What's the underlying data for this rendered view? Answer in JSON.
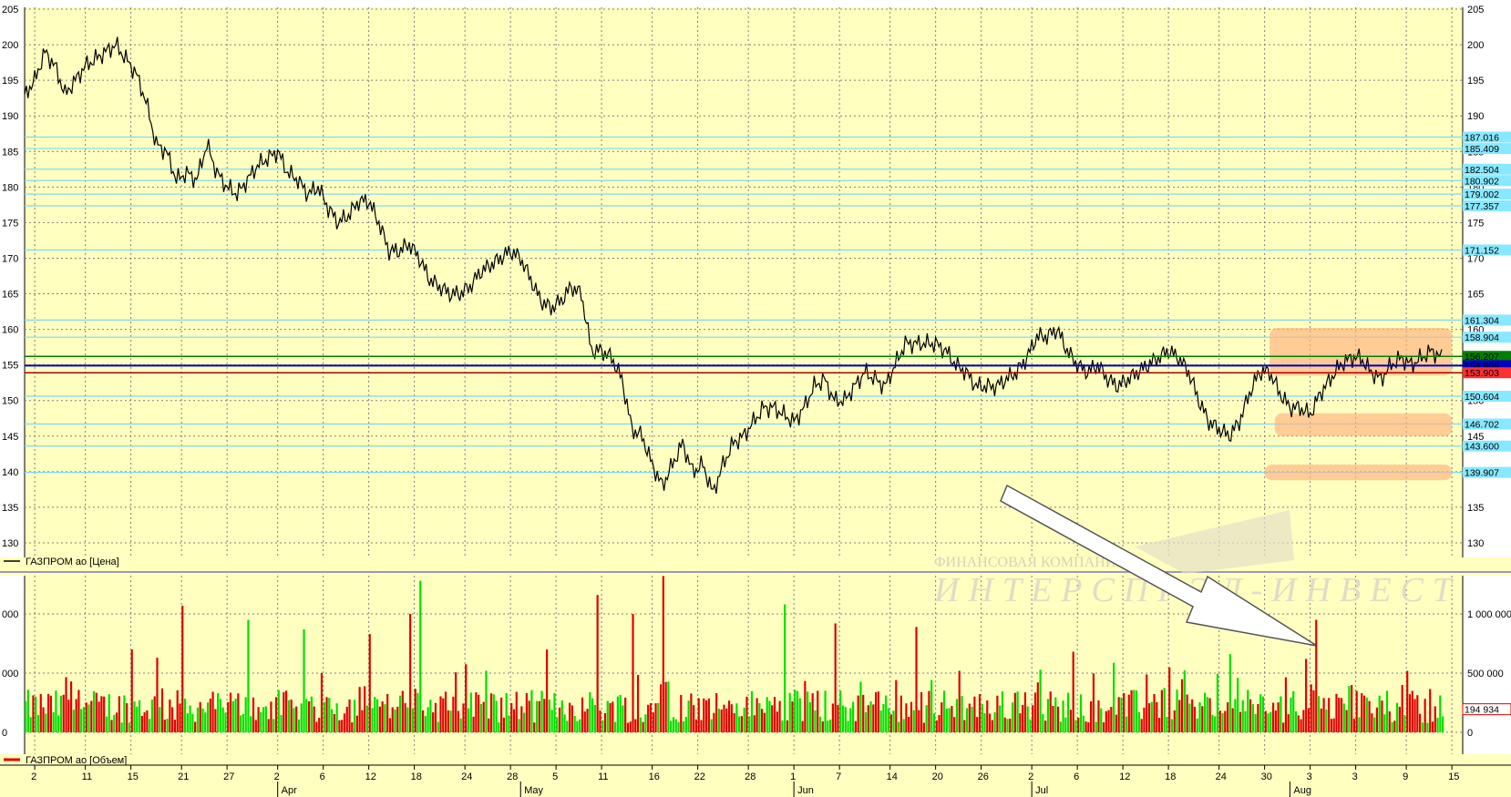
{
  "chart_data": {
    "type": "line",
    "colors": {
      "background": "#FFFFC0",
      "grid": "#808080",
      "price_line": "#000000",
      "level_line": "#80D8F0",
      "level_label_bg": "#88E8FF",
      "green_line": "#008000",
      "blue_line": "#0000C0",
      "red_line": "#B00000",
      "vol_up": "#00E000",
      "vol_down": "#E00000",
      "zone": "#FFB080",
      "arrow": "#FFFFFF"
    },
    "price": {
      "legend": "ГАЗПРОМ ао [Цена]",
      "ylim": [
        130,
        205
      ],
      "yticks": [
        "130",
        "135",
        "140",
        "145",
        "150",
        "155",
        "160",
        "165",
        "170",
        "175",
        "180",
        "185",
        "190",
        "195",
        "200",
        "205"
      ],
      "levels": [
        {
          "value": 187.016,
          "label": "187.0162",
          "shown": "187.016"
        },
        {
          "value": 185.409,
          "label": "185.409",
          "shown": "185.409"
        },
        {
          "value": 182.504,
          "label": "182.504",
          "shown": "182.504"
        },
        {
          "value": 180.902,
          "label": "180.902",
          "shown": "180.902"
        },
        {
          "value": 179.002,
          "label": "179.002",
          "shown": "179.002"
        },
        {
          "value": 177.357,
          "label": "177.357",
          "shown": "177.357"
        },
        {
          "value": 171.152,
          "label": "171.152",
          "shown": "171.152"
        },
        {
          "value": 161.304,
          "label": "161.304",
          "shown": "161.304"
        },
        {
          "value": 158.904,
          "label": "158.904",
          "shown": "158.904"
        },
        {
          "value": 150.604,
          "label": "150.604",
          "shown": "150.604"
        },
        {
          "value": 146.702,
          "label": "146.702",
          "shown": "146.702"
        },
        {
          "value": 143.6,
          "label": "143.600",
          "shown": "143.600"
        },
        {
          "value": 139.907,
          "label": "139.907",
          "shown": "139.907"
        }
      ],
      "markers": [
        {
          "value": 156.207,
          "label": "156.207",
          "kind": "green"
        },
        {
          "value": 154.909,
          "label": "154.909",
          "kind": "blue"
        },
        {
          "value": 153.903,
          "label": "153.903",
          "kind": "red"
        }
      ],
      "series": [
        {
          "t": 0,
          "v": 193
        },
        {
          "t": 2,
          "v": 195
        },
        {
          "t": 4,
          "v": 199
        },
        {
          "t": 6,
          "v": 197
        },
        {
          "t": 8,
          "v": 193
        },
        {
          "t": 10,
          "v": 195
        },
        {
          "t": 12,
          "v": 197
        },
        {
          "t": 14,
          "v": 198
        },
        {
          "t": 16,
          "v": 199
        },
        {
          "t": 18,
          "v": 200
        },
        {
          "t": 20,
          "v": 198
        },
        {
          "t": 22,
          "v": 196
        },
        {
          "t": 24,
          "v": 192
        },
        {
          "t": 26,
          "v": 186
        },
        {
          "t": 28,
          "v": 185
        },
        {
          "t": 30,
          "v": 181
        },
        {
          "t": 32,
          "v": 182
        },
        {
          "t": 34,
          "v": 181
        },
        {
          "t": 36,
          "v": 186
        },
        {
          "t": 38,
          "v": 182
        },
        {
          "t": 40,
          "v": 180
        },
        {
          "t": 42,
          "v": 179
        },
        {
          "t": 44,
          "v": 181
        },
        {
          "t": 46,
          "v": 183
        },
        {
          "t": 48,
          "v": 184
        },
        {
          "t": 50,
          "v": 185
        },
        {
          "t": 52,
          "v": 182
        },
        {
          "t": 54,
          "v": 181
        },
        {
          "t": 56,
          "v": 179
        },
        {
          "t": 58,
          "v": 180
        },
        {
          "t": 60,
          "v": 177
        },
        {
          "t": 62,
          "v": 175
        },
        {
          "t": 64,
          "v": 176
        },
        {
          "t": 66,
          "v": 178
        },
        {
          "t": 68,
          "v": 178
        },
        {
          "t": 70,
          "v": 175
        },
        {
          "t": 72,
          "v": 171
        },
        {
          "t": 74,
          "v": 171
        },
        {
          "t": 76,
          "v": 172
        },
        {
          "t": 78,
          "v": 170
        },
        {
          "t": 80,
          "v": 167
        },
        {
          "t": 82,
          "v": 166
        },
        {
          "t": 84,
          "v": 165
        },
        {
          "t": 86,
          "v": 165
        },
        {
          "t": 88,
          "v": 166
        },
        {
          "t": 90,
          "v": 168
        },
        {
          "t": 92,
          "v": 169
        },
        {
          "t": 94,
          "v": 170
        },
        {
          "t": 96,
          "v": 171
        },
        {
          "t": 98,
          "v": 170
        },
        {
          "t": 100,
          "v": 167
        },
        {
          "t": 102,
          "v": 164
        },
        {
          "t": 104,
          "v": 163
        },
        {
          "t": 106,
          "v": 164
        },
        {
          "t": 108,
          "v": 166
        },
        {
          "t": 110,
          "v": 165
        },
        {
          "t": 112,
          "v": 157
        },
        {
          "t": 114,
          "v": 157
        },
        {
          "t": 116,
          "v": 156
        },
        {
          "t": 118,
          "v": 153
        },
        {
          "t": 120,
          "v": 146
        },
        {
          "t": 122,
          "v": 145
        },
        {
          "t": 124,
          "v": 141
        },
        {
          "t": 126,
          "v": 138
        },
        {
          "t": 128,
          "v": 141
        },
        {
          "t": 130,
          "v": 144
        },
        {
          "t": 132,
          "v": 140
        },
        {
          "t": 134,
          "v": 141
        },
        {
          "t": 136,
          "v": 137
        },
        {
          "t": 138,
          "v": 141
        },
        {
          "t": 140,
          "v": 144
        },
        {
          "t": 142,
          "v": 145
        },
        {
          "t": 144,
          "v": 147
        },
        {
          "t": 146,
          "v": 149
        },
        {
          "t": 148,
          "v": 149
        },
        {
          "t": 150,
          "v": 148
        },
        {
          "t": 152,
          "v": 147
        },
        {
          "t": 154,
          "v": 149
        },
        {
          "t": 156,
          "v": 152
        },
        {
          "t": 158,
          "v": 153
        },
        {
          "t": 160,
          "v": 150
        },
        {
          "t": 162,
          "v": 150
        },
        {
          "t": 164,
          "v": 152
        },
        {
          "t": 166,
          "v": 154
        },
        {
          "t": 168,
          "v": 153
        },
        {
          "t": 170,
          "v": 152
        },
        {
          "t": 172,
          "v": 155
        },
        {
          "t": 174,
          "v": 158
        },
        {
          "t": 176,
          "v": 158
        },
        {
          "t": 178,
          "v": 158
        },
        {
          "t": 180,
          "v": 158
        },
        {
          "t": 182,
          "v": 157
        },
        {
          "t": 184,
          "v": 155
        },
        {
          "t": 186,
          "v": 154
        },
        {
          "t": 188,
          "v": 152
        },
        {
          "t": 190,
          "v": 152
        },
        {
          "t": 192,
          "v": 152
        },
        {
          "t": 194,
          "v": 153
        },
        {
          "t": 196,
          "v": 154
        },
        {
          "t": 198,
          "v": 156
        },
        {
          "t": 200,
          "v": 159
        },
        {
          "t": 202,
          "v": 159
        },
        {
          "t": 204,
          "v": 160
        },
        {
          "t": 206,
          "v": 157
        },
        {
          "t": 208,
          "v": 155
        },
        {
          "t": 210,
          "v": 154
        },
        {
          "t": 212,
          "v": 155
        },
        {
          "t": 214,
          "v": 153
        },
        {
          "t": 216,
          "v": 152
        },
        {
          "t": 218,
          "v": 153
        },
        {
          "t": 220,
          "v": 154
        },
        {
          "t": 222,
          "v": 155
        },
        {
          "t": 224,
          "v": 156
        },
        {
          "t": 226,
          "v": 157
        },
        {
          "t": 228,
          "v": 156
        },
        {
          "t": 230,
          "v": 154
        },
        {
          "t": 232,
          "v": 150
        },
        {
          "t": 234,
          "v": 147
        },
        {
          "t": 236,
          "v": 146
        },
        {
          "t": 238,
          "v": 145
        },
        {
          "t": 240,
          "v": 147
        },
        {
          "t": 242,
          "v": 151
        },
        {
          "t": 244,
          "v": 154
        },
        {
          "t": 246,
          "v": 154
        },
        {
          "t": 248,
          "v": 151
        },
        {
          "t": 250,
          "v": 149
        },
        {
          "t": 252,
          "v": 149
        },
        {
          "t": 254,
          "v": 148
        },
        {
          "t": 256,
          "v": 151
        },
        {
          "t": 258,
          "v": 153
        },
        {
          "t": 260,
          "v": 155
        },
        {
          "t": 262,
          "v": 156
        },
        {
          "t": 264,
          "v": 156
        },
        {
          "t": 266,
          "v": 154
        },
        {
          "t": 268,
          "v": 153
        },
        {
          "t": 270,
          "v": 155
        },
        {
          "t": 272,
          "v": 156
        },
        {
          "t": 274,
          "v": 155
        },
        {
          "t": 276,
          "v": 156
        },
        {
          "t": 278,
          "v": 157
        },
        {
          "t": 280,
          "v": 156
        }
      ]
    },
    "volume": {
      "legend": "ГАЗПРОМ ао [Объем]",
      "ylim": [
        0,
        1300000
      ],
      "yticks": [
        {
          "v": 0,
          "label": "0"
        },
        {
          "v": 500000,
          "label": "500 000"
        },
        {
          "v": 1000000,
          "label": "1 000 000"
        }
      ],
      "last_label": "194 934",
      "last_value": 194934,
      "spikes": [
        {
          "t": 9,
          "v": 430000,
          "up": false
        },
        {
          "t": 21,
          "v": 700000,
          "up": false
        },
        {
          "t": 26,
          "v": 630000,
          "up": false
        },
        {
          "t": 31,
          "v": 1070000,
          "up": false
        },
        {
          "t": 44,
          "v": 950000,
          "up": true
        },
        {
          "t": 55,
          "v": 870000,
          "up": true
        },
        {
          "t": 68,
          "v": 830000,
          "up": false
        },
        {
          "t": 76,
          "v": 1000000,
          "up": false
        },
        {
          "t": 78,
          "v": 1280000,
          "up": true
        },
        {
          "t": 103,
          "v": 700000,
          "up": false
        },
        {
          "t": 113,
          "v": 1160000,
          "up": false
        },
        {
          "t": 120,
          "v": 1000000,
          "up": false
        },
        {
          "t": 126,
          "v": 1320000,
          "up": false
        },
        {
          "t": 150,
          "v": 1080000,
          "up": true
        },
        {
          "t": 160,
          "v": 920000,
          "up": false
        },
        {
          "t": 176,
          "v": 890000,
          "up": false
        },
        {
          "t": 207,
          "v": 680000,
          "up": false
        },
        {
          "t": 238,
          "v": 660000,
          "up": true
        },
        {
          "t": 253,
          "v": 620000,
          "up": false
        },
        {
          "t": 255,
          "v": 950000,
          "up": false
        }
      ]
    },
    "x_axis": {
      "n": 280,
      "day_ticks": [
        {
          "t": 2,
          "label": "2"
        },
        {
          "t": 12,
          "label": "11"
        },
        {
          "t": 21,
          "label": "15"
        },
        {
          "t": 31,
          "label": "21"
        },
        {
          "t": 40,
          "label": "27"
        },
        {
          "t": 50,
          "label": "2"
        },
        {
          "t": 59,
          "label": "6"
        },
        {
          "t": 68,
          "label": "12"
        },
        {
          "t": 77,
          "label": "18"
        },
        {
          "t": 87,
          "label": "24"
        },
        {
          "t": 96,
          "label": "28"
        },
        {
          "t": 105,
          "label": "5"
        },
        {
          "t": 114,
          "label": "11"
        },
        {
          "t": 124,
          "label": "16"
        },
        {
          "t": 133,
          "label": "22"
        },
        {
          "t": 143,
          "label": "28"
        },
        {
          "t": 152,
          "label": "1"
        },
        {
          "t": 161,
          "label": "7"
        },
        {
          "t": 171,
          "label": "14"
        },
        {
          "t": 180,
          "label": "20"
        },
        {
          "t": 189,
          "label": "26"
        },
        {
          "t": 199,
          "label": "2"
        },
        {
          "t": 208,
          "label": "6"
        },
        {
          "t": 217,
          "label": "12"
        },
        {
          "t": 226,
          "label": "18"
        },
        {
          "t": 236,
          "label": "24"
        },
        {
          "t": 245,
          "label": "30"
        },
        {
          "t": 254,
          "label": "3"
        },
        {
          "t": 263,
          "label": "3"
        },
        {
          "t": 273,
          "label": "9"
        },
        {
          "t": 282,
          "label": "15"
        }
      ],
      "months": [
        {
          "t": 50,
          "label": "Apr"
        },
        {
          "t": 98,
          "label": "May"
        },
        {
          "t": 152,
          "label": "Jun"
        },
        {
          "t": 199,
          "label": "Jul"
        },
        {
          "t": 250,
          "label": "Aug"
        }
      ]
    },
    "zones": [
      {
        "t0": 246,
        "t1": 282,
        "v0": 153.5,
        "v1": 160.2
      },
      {
        "t0": 247,
        "t1": 282,
        "v0": 145.0,
        "v1": 148.2
      },
      {
        "t0": 245,
        "t1": 282,
        "v0": 138.8,
        "v1": 141.0
      }
    ],
    "watermark": {
      "line1": "ФИНАНСОВАЯ КОМПАНИЯ",
      "line2": "ИНТЕРСПРЭД-ИНВЕСТ"
    }
  }
}
